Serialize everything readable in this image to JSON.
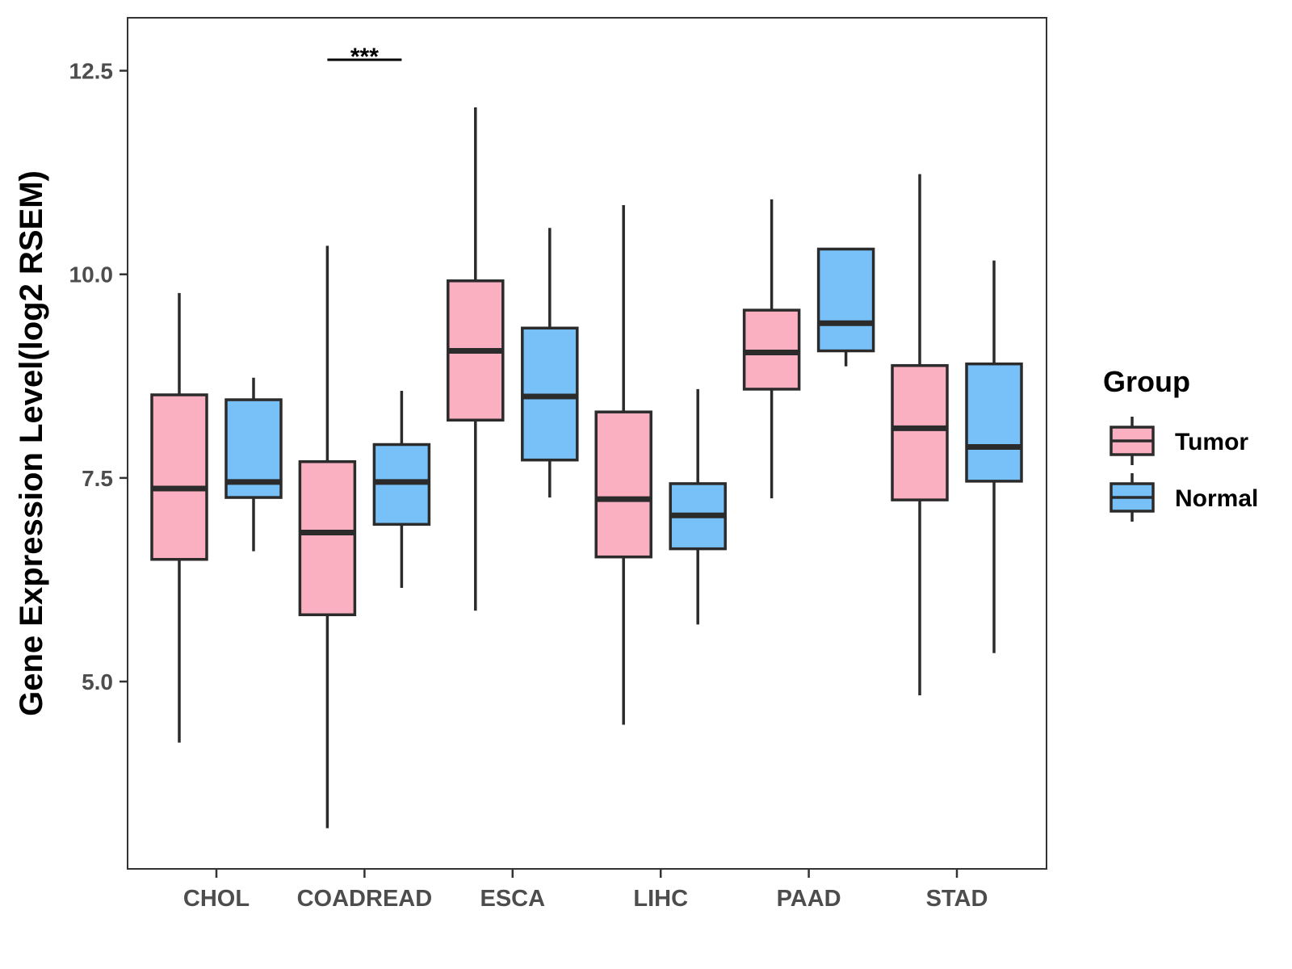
{
  "chart_data": {
    "type": "boxplot",
    "title": "",
    "xlabel": "",
    "ylabel": "Gene Expression Level(log2 RSEM)",
    "ylim": [
      2.7,
      13.15
    ],
    "yticks": [
      "5.0",
      "7.5",
      "10.0",
      "12.5"
    ],
    "grid": false,
    "legend": {
      "title": "Group",
      "position": "right",
      "entries": [
        {
          "name": "Tumor",
          "color": "#fbb0c1"
        },
        {
          "name": "Normal",
          "color": "#78c0f8"
        }
      ]
    },
    "categories": [
      "CHOL",
      "COADREAD",
      "ESCA",
      "LIHC",
      "PAAD",
      "STAD"
    ],
    "series": [
      {
        "name": "Tumor",
        "color": "#fbb0c1",
        "boxes": [
          {
            "min": 4.25,
            "q1": 6.5,
            "median": 7.37,
            "q3": 8.52,
            "max": 9.77
          },
          {
            "min": 3.2,
            "q1": 5.82,
            "median": 6.83,
            "q3": 7.7,
            "max": 10.35
          },
          {
            "min": 5.87,
            "q1": 8.21,
            "median": 9.06,
            "q3": 9.92,
            "max": 12.05
          },
          {
            "min": 4.47,
            "q1": 6.53,
            "median": 7.24,
            "q3": 8.31,
            "max": 10.85
          },
          {
            "min": 7.25,
            "q1": 8.59,
            "median": 9.04,
            "q3": 9.56,
            "max": 10.92
          },
          {
            "min": 4.83,
            "q1": 7.23,
            "median": 8.11,
            "q3": 8.88,
            "max": 11.23
          }
        ]
      },
      {
        "name": "Normal",
        "color": "#78c0f8",
        "boxes": [
          {
            "min": 6.6,
            "q1": 7.26,
            "median": 7.45,
            "q3": 8.46,
            "max": 8.73
          },
          {
            "min": 6.15,
            "q1": 6.93,
            "median": 7.45,
            "q3": 7.91,
            "max": 8.57
          },
          {
            "min": 7.26,
            "q1": 7.72,
            "median": 8.5,
            "q3": 9.34,
            "max": 10.57
          },
          {
            "min": 5.7,
            "q1": 6.63,
            "median": 7.04,
            "q3": 7.43,
            "max": 8.59
          },
          {
            "min": 8.87,
            "q1": 9.06,
            "median": 9.4,
            "q3": 10.31,
            "max": 10.31
          },
          {
            "min": 5.35,
            "q1": 7.46,
            "median": 7.88,
            "q3": 8.9,
            "max": 10.17
          }
        ]
      }
    ],
    "annotations": [
      {
        "category": "COADREAD",
        "text": "***"
      }
    ]
  }
}
